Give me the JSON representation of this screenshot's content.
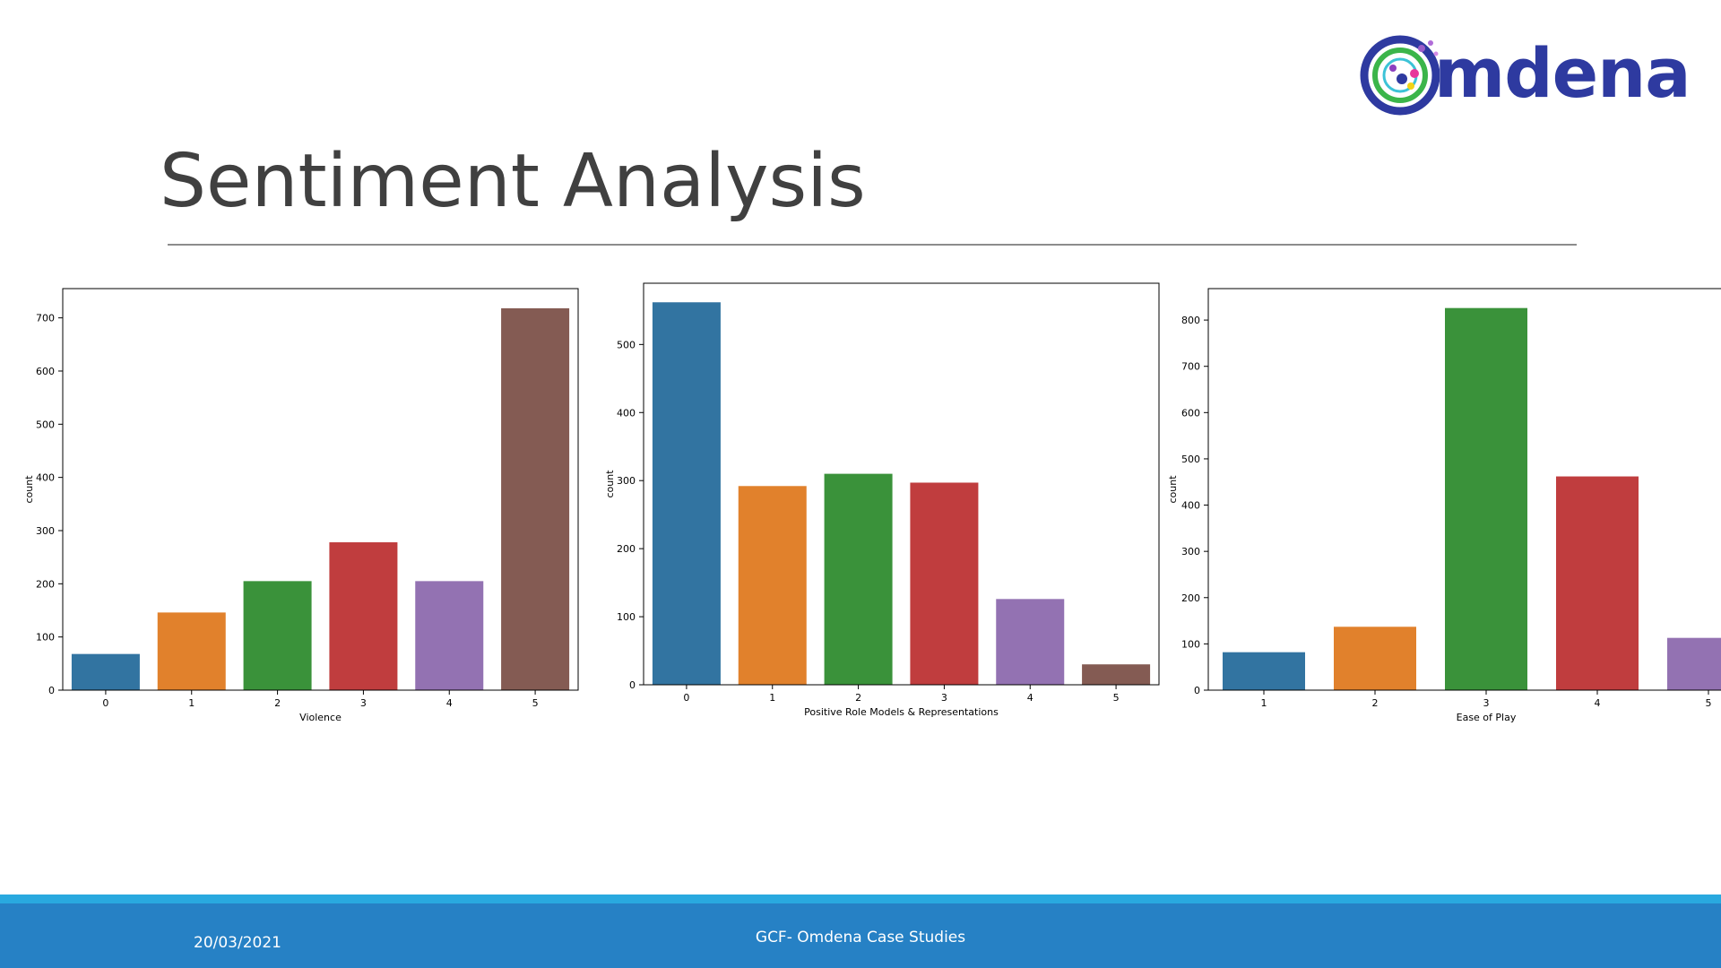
{
  "slide": {
    "logo_text": "mdena",
    "title": "Sentiment Analysis"
  },
  "footer": {
    "date": "20/03/2021",
    "center_text": "GCF- Omdena Case Studies"
  },
  "colors": {
    "title": "#404040",
    "footer_band": "#2681c5",
    "footer_strip": "#29a9df",
    "logo_text": "#2e3aa0",
    "palette": [
      "#3274a1",
      "#e1812c",
      "#3a923a",
      "#c03d3e",
      "#9372b2",
      "#845b53"
    ]
  },
  "chart_data": [
    {
      "type": "bar",
      "categories": [
        "0",
        "1",
        "2",
        "3",
        "4",
        "5"
      ],
      "values": [
        68,
        146,
        205,
        278,
        205,
        718
      ],
      "xlabel": "Violence",
      "ylabel": "count",
      "ylim": [
        0,
        755
      ],
      "yticks": [
        0,
        100,
        200,
        300,
        400,
        500,
        600,
        700
      ],
      "colors": [
        "#3274a1",
        "#e1812c",
        "#3a923a",
        "#c03d3e",
        "#9372b2",
        "#845b53"
      ]
    },
    {
      "type": "bar",
      "categories": [
        "0",
        "1",
        "2",
        "3",
        "4",
        "5"
      ],
      "values": [
        562,
        292,
        310,
        297,
        126,
        30
      ],
      "xlabel": "Positive Role Models & Representations",
      "ylabel": "count",
      "ylim": [
        0,
        590
      ],
      "yticks": [
        0,
        100,
        200,
        300,
        400,
        500
      ],
      "colors": [
        "#3274a1",
        "#e1812c",
        "#3a923a",
        "#c03d3e",
        "#9372b2",
        "#845b53"
      ]
    },
    {
      "type": "bar",
      "categories": [
        "1",
        "2",
        "3",
        "4",
        "5"
      ],
      "values": [
        82,
        137,
        826,
        462,
        113
      ],
      "xlabel": "Ease of Play",
      "ylabel": "count",
      "ylim": [
        0,
        868
      ],
      "yticks": [
        0,
        100,
        200,
        300,
        400,
        500,
        600,
        700,
        800
      ],
      "colors": [
        "#3274a1",
        "#e1812c",
        "#3a923a",
        "#c03d3e",
        "#9372b2"
      ]
    }
  ]
}
